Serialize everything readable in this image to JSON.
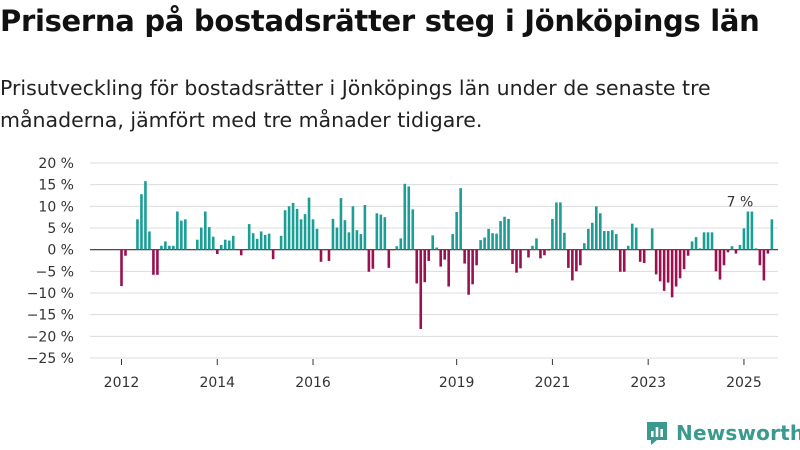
{
  "title": "Priserna på bostadsrätter steg i Jönköpings län",
  "subtitle": "Prisutveckling för bostadsrätter i Jönköpings län under de senaste tre månaderna, jämfört med tre månader tidigare.",
  "brand": {
    "name": "Newsworthy",
    "color": "#3a9a8e"
  },
  "chart_data": {
    "type": "bar",
    "unit": "%",
    "grid": true,
    "legend": "none",
    "ylim": [
      -25,
      20
    ],
    "yticks": [
      20,
      15,
      10,
      5,
      0,
      -5,
      -10,
      -15,
      -20,
      -25
    ],
    "ytick_labels": [
      "20 %",
      "15 %",
      "10 %",
      "5 %",
      "0 %",
      "−5 %",
      "−10 %",
      "−15 %",
      "−20 %",
      "−25 %"
    ],
    "xticks": [
      "2012",
      "2014",
      "2016",
      "2019",
      "2021",
      "2023",
      "2025"
    ],
    "xtick_values": [
      "2012-01",
      "2014-01",
      "2016-01",
      "2019-01",
      "2021-01",
      "2023-01",
      "2025-01"
    ],
    "x_start": "2012-01",
    "positive_color": "#1a9e96",
    "negative_color": "#9b1050",
    "annotation": {
      "text": "7 %",
      "date": "2025-01",
      "value": 7
    },
    "series": [
      {
        "values": [
          -8.4,
          -1.4,
          0,
          0,
          7,
          12.8,
          15.8,
          4.2,
          -5.8,
          -5.8,
          0.9,
          1.9,
          0.9,
          0.9,
          8.8,
          6.7,
          7,
          0,
          0,
          2.3,
          5.1,
          8.8,
          5.2,
          3,
          -1,
          1.1,
          2.3,
          2.1,
          3.2,
          0,
          -1.3,
          0,
          5.9,
          3.8,
          2.5,
          4.2,
          3.4,
          3.7,
          -2.2,
          0,
          3.2,
          9.1,
          10,
          10.8,
          9.4,
          7,
          8.2,
          12,
          7,
          4.8,
          -2.8,
          -0.1,
          -2.6,
          7.1,
          5.1,
          11.9,
          6.8,
          4,
          10,
          4.5,
          3.6,
          10.3,
          -5.1,
          -4.4,
          8.4,
          8.1,
          7.5,
          -4.2,
          -0.1,
          0.8,
          2.6,
          15.2,
          14.6,
          9.3,
          -7.8,
          -18.3,
          -7.5,
          -2.6,
          3.3,
          0.5,
          -3.9,
          -2.3,
          -8.5,
          3.6,
          8.7,
          14.2,
          -3.2,
          -10.4,
          -8,
          -3.6,
          2.2,
          2.8,
          4.8,
          3.8,
          3.7,
          6.6,
          7.6,
          7.1,
          -3.3,
          -5.3,
          -4.3,
          -0.1,
          -1.8,
          0.9,
          2.6,
          -2,
          -1.3,
          -0.2,
          7.1,
          10.9,
          10.9,
          3.9,
          -4.2,
          -7.1,
          -5,
          -3.6,
          1.5,
          4.8,
          6.2,
          10,
          8.4,
          4.3,
          4.3,
          4.5,
          3.6,
          -5.1,
          -5.1,
          0.9,
          6,
          5.1,
          -2.8,
          -3.1,
          0,
          4.9,
          -5.7,
          -7.3,
          -9.5,
          -7.6,
          -11,
          -8.5,
          -6.6,
          -4.5,
          -1.4,
          1.9,
          2.9,
          0.3,
          4,
          4,
          4,
          -5,
          -6.9,
          -3.6,
          -0.6,
          0.8,
          -0.9,
          1.1,
          4.9,
          8.8,
          8.8,
          0.3,
          -3.6,
          -7.1,
          -0.9,
          7
        ]
      }
    ]
  }
}
